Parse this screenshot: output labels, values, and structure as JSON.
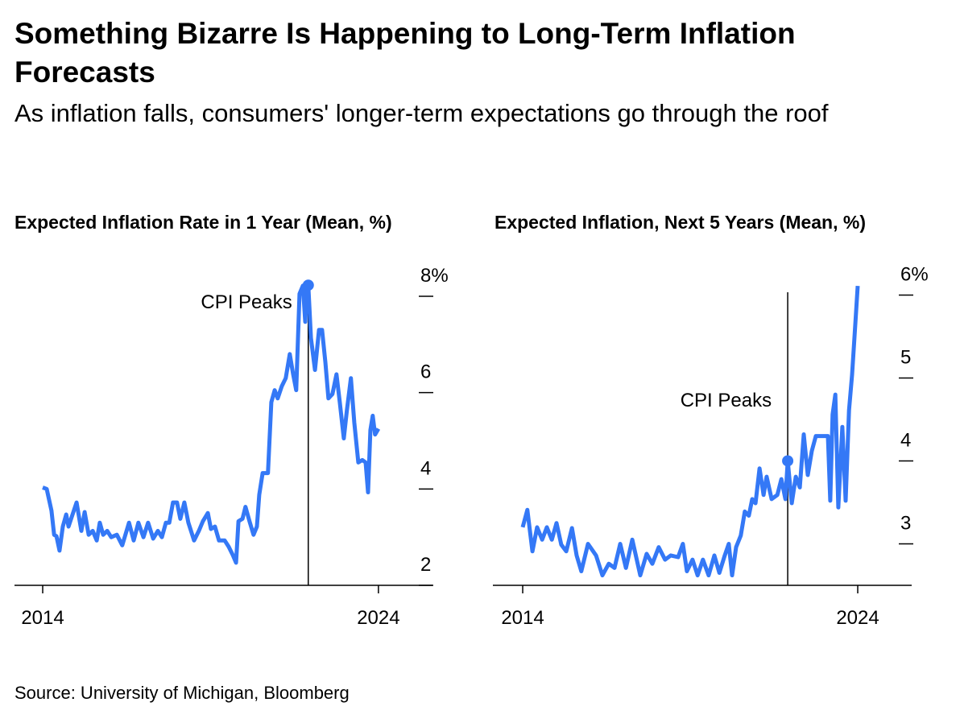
{
  "title": "Something Bizarre Is Happening to Long-Term Inflation Forecasts",
  "subtitle": "As inflation falls, consumers' longer-term expectations go through the roof",
  "source": "Source: University of Michigan, Bloomberg",
  "chart_data": [
    {
      "type": "line",
      "title": "Expected Inflation Rate in 1 Year (Mean, %)",
      "color": "#3478f6",
      "x": [
        2014.0,
        2014.12,
        2014.26,
        2014.34,
        2014.41,
        2014.5,
        2014.6,
        2014.7,
        2014.77,
        2014.89,
        2015.01,
        2015.15,
        2015.25,
        2015.37,
        2015.49,
        2015.61,
        2015.7,
        2015.8,
        2015.92,
        2016.04,
        2016.21,
        2016.37,
        2016.57,
        2016.71,
        2016.85,
        2017.0,
        2017.14,
        2017.29,
        2017.43,
        2017.55,
        2017.67,
        2017.77,
        2017.88,
        2018.0,
        2018.1,
        2018.22,
        2018.34,
        2018.51,
        2018.65,
        2018.77,
        2018.92,
        2019.01,
        2019.13,
        2019.25,
        2019.42,
        2019.54,
        2019.66,
        2019.76,
        2019.83,
        2019.95,
        2020.04,
        2020.16,
        2020.28,
        2020.38,
        2020.45,
        2020.55,
        2020.71,
        2020.81,
        2020.91,
        2021.0,
        2021.12,
        2021.24,
        2021.36,
        2021.46,
        2021.55,
        2021.65,
        2021.75,
        2021.82,
        2021.87,
        2021.91,
        2021.99,
        2022.11,
        2022.23,
        2022.32,
        2022.42,
        2022.51,
        2022.63,
        2022.75,
        2022.85,
        2022.97,
        2023.06,
        2023.18,
        2023.28,
        2023.4,
        2023.52,
        2023.62,
        2023.69,
        2023.76,
        2023.83,
        2023.9,
        2024.0
      ],
      "values": [
        4.03,
        4.0,
        3.55,
        3.05,
        3.02,
        2.72,
        3.22,
        3.47,
        3.22,
        3.47,
        3.72,
        3.13,
        3.52,
        3.05,
        3.13,
        2.93,
        3.3,
        3.05,
        3.13,
        3.0,
        3.05,
        2.83,
        3.3,
        2.93,
        3.3,
        3.0,
        3.3,
        2.97,
        3.13,
        3.0,
        3.3,
        3.3,
        3.72,
        3.72,
        3.38,
        3.72,
        3.3,
        2.93,
        3.13,
        3.33,
        3.5,
        3.17,
        3.22,
        2.93,
        2.93,
        2.8,
        2.63,
        2.47,
        3.33,
        3.38,
        3.63,
        3.33,
        3.05,
        3.22,
        3.88,
        4.33,
        4.33,
        5.8,
        6.05,
        5.88,
        6.13,
        6.3,
        6.8,
        6.38,
        6.05,
        8.05,
        8.22,
        7.47,
        8.13,
        8.23,
        7.13,
        6.47,
        7.3,
        7.3,
        6.63,
        5.88,
        5.97,
        6.38,
        5.8,
        5.05,
        5.63,
        6.3,
        5.38,
        4.55,
        4.6,
        4.55,
        3.93,
        5.22,
        5.52,
        5.13,
        5.25
      ],
      "xlim": [
        2013.16,
        2025.61
      ],
      "xticks": [
        2014,
        2024
      ],
      "ylim": [
        2,
        8.3
      ],
      "yticks": [
        2,
        4,
        6,
        {
          "value": 8,
          "label": "8%"
        }
      ],
      "annotation": {
        "text": "CPI Peaks",
        "x": 2021.91
      }
    },
    {
      "type": "line",
      "title": "Expected Inflation, Next 5 Years (Mean, %)",
      "color": "#3478f6",
      "x": [
        2014.0,
        2014.14,
        2014.29,
        2014.43,
        2014.58,
        2014.72,
        2014.87,
        2015.01,
        2015.15,
        2015.3,
        2015.47,
        2015.61,
        2015.75,
        2015.95,
        2016.19,
        2016.38,
        2016.57,
        2016.74,
        2016.91,
        2017.08,
        2017.27,
        2017.51,
        2017.7,
        2017.87,
        2018.06,
        2018.25,
        2018.42,
        2018.64,
        2018.78,
        2018.9,
        2019.07,
        2019.22,
        2019.38,
        2019.55,
        2019.72,
        2019.87,
        2020.03,
        2020.15,
        2020.25,
        2020.37,
        2020.51,
        2020.63,
        2020.75,
        2020.85,
        2020.95,
        2021.07,
        2021.19,
        2021.28,
        2021.43,
        2021.6,
        2021.72,
        2021.84,
        2021.91,
        2022.03,
        2022.15,
        2022.27,
        2022.39,
        2022.51,
        2022.63,
        2022.75,
        2023.11,
        2023.18,
        2023.25,
        2023.33,
        2023.42,
        2023.54,
        2023.64,
        2023.74,
        2023.83,
        2023.9,
        2024.0
      ],
      "values": [
        3.2,
        3.41,
        2.91,
        3.2,
        3.05,
        3.2,
        3.05,
        3.25,
        2.99,
        2.91,
        3.19,
        2.86,
        2.67,
        3.0,
        2.86,
        2.62,
        2.76,
        2.71,
        3.0,
        2.71,
        3.05,
        2.62,
        2.88,
        2.76,
        2.96,
        2.81,
        2.86,
        2.84,
        3.0,
        2.67,
        2.81,
        2.62,
        2.81,
        2.62,
        2.86,
        2.65,
        2.86,
        3.0,
        2.62,
        2.96,
        3.1,
        3.39,
        3.34,
        3.54,
        3.49,
        3.91,
        3.59,
        3.81,
        3.54,
        3.59,
        3.78,
        3.54,
        4.0,
        3.49,
        3.81,
        3.68,
        4.32,
        3.83,
        4.12,
        4.3,
        4.3,
        3.52,
        4.56,
        4.8,
        3.44,
        4.41,
        3.52,
        4.61,
        5.04,
        5.48,
        6.11
      ],
      "xlim": [
        2013.11,
        2025.61
      ],
      "xticks": [
        2014,
        2024
      ],
      "ylim": [
        2.5,
        6.15
      ],
      "yticks": [
        3,
        4,
        5,
        {
          "value": 6,
          "label": "6%"
        }
      ],
      "annotation": {
        "text": "CPI Peaks",
        "x": 2021.91
      }
    }
  ]
}
